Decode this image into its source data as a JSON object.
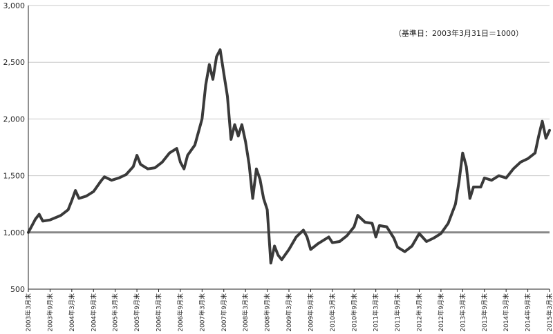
{
  "chart_data": {
    "type": "line",
    "title": "",
    "xlabel": "",
    "ylabel": "",
    "ylim": [
      500,
      3000
    ],
    "yticks": [
      500,
      1000,
      1500,
      2000,
      2500,
      3000
    ],
    "ytick_labels": [
      "500",
      "1,000",
      "1,500",
      "2,000",
      "2,500",
      "3,000"
    ],
    "grid": true,
    "annotation": "（基準日：2003年3月31日＝1000）",
    "baseline": 1000,
    "colors": {
      "line": "#3a3a3a",
      "baseline": "#888888",
      "grid": "#c8c8c8"
    },
    "x_start": "2003-03",
    "x_end": "2015-03",
    "x": [
      "2003年3月末",
      "2003年9月末",
      "2004年3月末",
      "2004年9月末",
      "2005年3月末",
      "2005年9月末",
      "2006年3月末",
      "2006年9月末",
      "2007年3月末",
      "2007年9月末",
      "2008年3月末",
      "2008年9月末",
      "2009年3月末",
      "2009年9月末",
      "2010年3月末",
      "2010年9月末",
      "2011年3月末",
      "2011年9月末",
      "2012年3月末",
      "2012年9月末",
      "2013年3月末",
      "2013年9月末",
      "2014年3月末",
      "2014年9月末",
      "2015年3月末"
    ],
    "series": [
      {
        "name": "",
        "points": [
          [
            "2003-03",
            1000
          ],
          [
            "2003-05",
            1120
          ],
          [
            "2003-06",
            1160
          ],
          [
            "2003-07",
            1100
          ],
          [
            "2003-09",
            1110
          ],
          [
            "2003-12",
            1150
          ],
          [
            "2004-02",
            1200
          ],
          [
            "2004-03",
            1280
          ],
          [
            "2004-04",
            1370
          ],
          [
            "2004-05",
            1300
          ],
          [
            "2004-07",
            1320
          ],
          [
            "2004-09",
            1360
          ],
          [
            "2004-11",
            1450
          ],
          [
            "2004-12",
            1490
          ],
          [
            "2005-02",
            1460
          ],
          [
            "2005-04",
            1480
          ],
          [
            "2005-06",
            1510
          ],
          [
            "2005-08",
            1580
          ],
          [
            "2005-09",
            1680
          ],
          [
            "2005-10",
            1600
          ],
          [
            "2005-12",
            1560
          ],
          [
            "2006-02",
            1570
          ],
          [
            "2006-04",
            1620
          ],
          [
            "2006-06",
            1700
          ],
          [
            "2006-08",
            1740
          ],
          [
            "2006-09",
            1620
          ],
          [
            "2006-10",
            1560
          ],
          [
            "2006-11",
            1680
          ],
          [
            "2007-01",
            1770
          ],
          [
            "2007-03",
            2000
          ],
          [
            "2007-04",
            2300
          ],
          [
            "2007-05",
            2480
          ],
          [
            "2007-06",
            2350
          ],
          [
            "2007-07",
            2550
          ],
          [
            "2007-08",
            2610
          ],
          [
            "2007-09",
            2400
          ],
          [
            "2007-10",
            2200
          ],
          [
            "2007-11",
            1820
          ],
          [
            "2007-12",
            1950
          ],
          [
            "2008-01",
            1850
          ],
          [
            "2008-02",
            1950
          ],
          [
            "2008-03",
            1800
          ],
          [
            "2008-04",
            1600
          ],
          [
            "2008-05",
            1300
          ],
          [
            "2008-06",
            1560
          ],
          [
            "2008-07",
            1470
          ],
          [
            "2008-08",
            1300
          ],
          [
            "2008-09",
            1200
          ],
          [
            "2008-10",
            730
          ],
          [
            "2008-11",
            880
          ],
          [
            "2008-12",
            800
          ],
          [
            "2009-01",
            760
          ],
          [
            "2009-03",
            850
          ],
          [
            "2009-05",
            960
          ],
          [
            "2009-07",
            1020
          ],
          [
            "2009-08",
            960
          ],
          [
            "2009-09",
            850
          ],
          [
            "2009-11",
            900
          ],
          [
            "2010-02",
            960
          ],
          [
            "2010-03",
            910
          ],
          [
            "2010-05",
            920
          ],
          [
            "2010-07",
            970
          ],
          [
            "2010-09",
            1050
          ],
          [
            "2010-10",
            1150
          ],
          [
            "2010-12",
            1090
          ],
          [
            "2011-02",
            1080
          ],
          [
            "2011-03",
            960
          ],
          [
            "2011-04",
            1060
          ],
          [
            "2011-06",
            1050
          ],
          [
            "2011-08",
            950
          ],
          [
            "2011-09",
            870
          ],
          [
            "2011-11",
            830
          ],
          [
            "2012-01",
            880
          ],
          [
            "2012-03",
            990
          ],
          [
            "2012-05",
            920
          ],
          [
            "2012-07",
            950
          ],
          [
            "2012-09",
            990
          ],
          [
            "2012-11",
            1080
          ],
          [
            "2013-01",
            1250
          ],
          [
            "2013-02",
            1450
          ],
          [
            "2013-03",
            1700
          ],
          [
            "2013-04",
            1580
          ],
          [
            "2013-05",
            1300
          ],
          [
            "2013-06",
            1400
          ],
          [
            "2013-08",
            1400
          ],
          [
            "2013-09",
            1480
          ],
          [
            "2013-11",
            1460
          ],
          [
            "2014-01",
            1500
          ],
          [
            "2014-03",
            1480
          ],
          [
            "2014-05",
            1560
          ],
          [
            "2014-07",
            1620
          ],
          [
            "2014-09",
            1650
          ],
          [
            "2014-11",
            1700
          ],
          [
            "2014-12",
            1850
          ],
          [
            "2015-01",
            1980
          ],
          [
            "2015-02",
            1830
          ],
          [
            "2015-03",
            1900
          ]
        ]
      }
    ]
  }
}
